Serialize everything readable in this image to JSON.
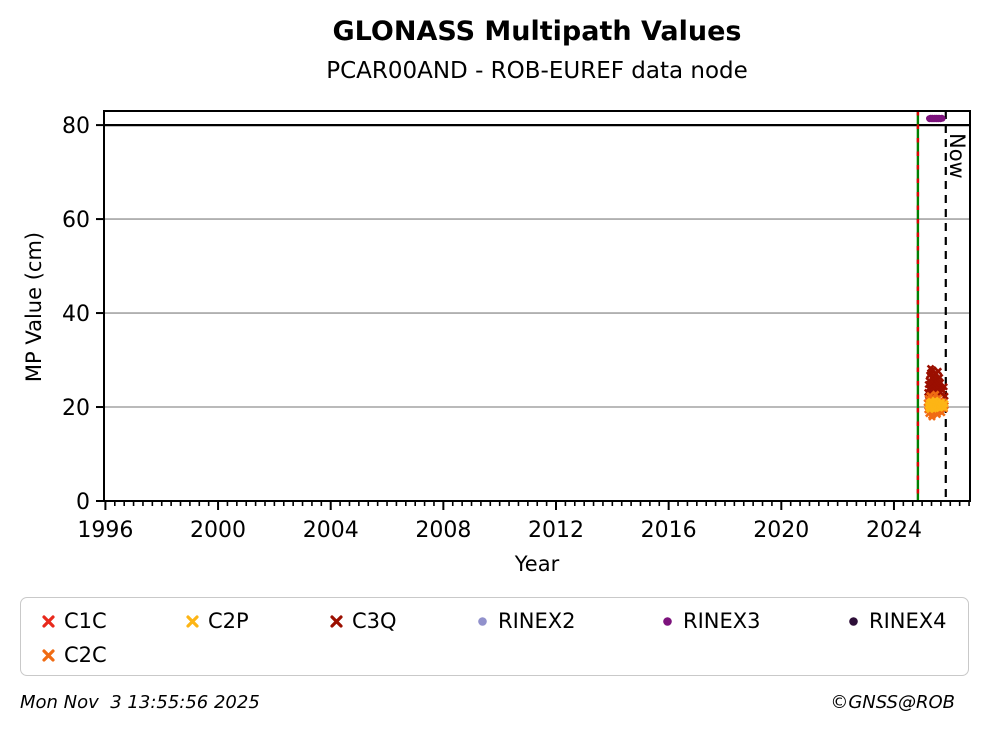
{
  "header": {
    "title": "GLONASS Multipath Values",
    "subtitle": "PCAR00AND - ROB-EUREF data node"
  },
  "axes": {
    "xlabel": "Year",
    "ylabel": "MP Value (cm)"
  },
  "footer": {
    "timestamp": "Mon Nov  3 13:55:56 2025",
    "copyright": "©GNSS@ROB"
  },
  "colors": {
    "grid": "#b0b0b0",
    "threshold_line": "#000000",
    "vline_green": "#008000",
    "vline_red_dash": "#dd0000",
    "now_line": "#000000"
  },
  "legend": {
    "items": [
      {
        "label": "C1C",
        "marker": "x",
        "color": "#e8291c"
      },
      {
        "label": "C2P",
        "marker": "x",
        "color": "#fdb515"
      },
      {
        "label": "C3Q",
        "marker": "x",
        "color": "#9b0f00"
      },
      {
        "label": "RINEX2",
        "marker": "circle",
        "color": "#9191cc"
      },
      {
        "label": "RINEX3",
        "marker": "circle",
        "color": "#7c127c"
      },
      {
        "label": "RINEX4",
        "marker": "circle",
        "color": "#2d0e38"
      },
      {
        "label": "C2C",
        "marker": "x",
        "color": "#f06b13"
      }
    ]
  },
  "chart_data": {
    "type": "scatter",
    "title": "GLONASS Multipath Values",
    "subtitle": "PCAR00AND - ROB-EUREF data node",
    "xlabel": "Year",
    "ylabel": "MP Value (cm)",
    "xlim": [
      1995.95,
      2026.7
    ],
    "ylim": [
      0,
      83
    ],
    "xticks": [
      1996,
      2000,
      2004,
      2008,
      2012,
      2016,
      2020,
      2024
    ],
    "yticks": [
      0,
      20,
      40,
      60,
      80
    ],
    "minor_x_start": 1996,
    "minor_x_step": 0.33333,
    "grid_y": [
      20,
      40,
      60
    ],
    "hline_y": 80,
    "vlines": [
      {
        "id": "data-start-line",
        "x": 2024.85,
        "type": "green-red-dashed"
      },
      {
        "id": "now-line",
        "x": 2025.84,
        "type": "black-dashed",
        "label": "Now"
      }
    ],
    "draw_order": [
      "C1C",
      "C3Q",
      "C2C",
      "C2P",
      "RINEX2",
      "RINEX4",
      "RINEX3"
    ],
    "series": [
      {
        "name": "C1C",
        "color": "#e8291c",
        "marker": "x",
        "points": [
          [
            2025.21,
            20.1
          ],
          [
            2025.27,
            19.3
          ],
          [
            2025.33,
            20.8
          ],
          [
            2025.39,
            19.1
          ],
          [
            2025.45,
            20.9
          ],
          [
            2025.51,
            19.4
          ],
          [
            2025.57,
            20.6
          ],
          [
            2025.63,
            19.2
          ],
          [
            2025.7,
            20.3
          ],
          [
            2025.77,
            19.8
          ]
        ]
      },
      {
        "name": "C2P",
        "color": "#fdb515",
        "marker": "x",
        "points": [
          [
            2025.22,
            20.3
          ],
          [
            2025.24,
            19.8
          ],
          [
            2025.26,
            20.9
          ],
          [
            2025.28,
            19.5
          ],
          [
            2025.3,
            20.6
          ],
          [
            2025.32,
            21.2
          ],
          [
            2025.34,
            19.9
          ],
          [
            2025.36,
            20.2
          ],
          [
            2025.38,
            21.0
          ],
          [
            2025.4,
            19.6
          ],
          [
            2025.42,
            20.7
          ],
          [
            2025.44,
            20.0
          ],
          [
            2025.46,
            21.4
          ],
          [
            2025.48,
            19.7
          ],
          [
            2025.5,
            20.5
          ],
          [
            2025.52,
            20.1
          ],
          [
            2025.54,
            21.1
          ],
          [
            2025.56,
            19.9
          ],
          [
            2025.58,
            20.4
          ],
          [
            2025.6,
            20.8
          ],
          [
            2025.62,
            19.8
          ],
          [
            2025.64,
            20.6
          ],
          [
            2025.66,
            20.2
          ],
          [
            2025.68,
            21.0
          ],
          [
            2025.71,
            20.0
          ],
          [
            2025.74,
            20.4
          ],
          [
            2025.78,
            19.9
          ],
          [
            2025.81,
            20.7
          ]
        ]
      },
      {
        "name": "C3Q",
        "color": "#9b0f00",
        "marker": "x",
        "points": [
          [
            2025.2,
            23.1
          ],
          [
            2025.22,
            24.8
          ],
          [
            2025.23,
            22.4
          ],
          [
            2025.25,
            25.6
          ],
          [
            2025.26,
            23.9
          ],
          [
            2025.27,
            26.8
          ],
          [
            2025.28,
            22.9
          ],
          [
            2025.3,
            24.2
          ],
          [
            2025.31,
            27.3
          ],
          [
            2025.32,
            23.5
          ],
          [
            2025.33,
            25.1
          ],
          [
            2025.35,
            26.2
          ],
          [
            2025.36,
            22.1
          ],
          [
            2025.37,
            24.6
          ],
          [
            2025.38,
            27.9
          ],
          [
            2025.4,
            23.3
          ],
          [
            2025.41,
            25.9
          ],
          [
            2025.42,
            24.0
          ],
          [
            2025.44,
            26.5
          ],
          [
            2025.45,
            22.6
          ],
          [
            2025.46,
            24.9
          ],
          [
            2025.48,
            27.1
          ],
          [
            2025.49,
            23.7
          ],
          [
            2025.5,
            25.4
          ],
          [
            2025.52,
            24.4
          ],
          [
            2025.53,
            26.0
          ],
          [
            2025.55,
            22.8
          ],
          [
            2025.56,
            25.0
          ],
          [
            2025.58,
            23.4
          ],
          [
            2025.6,
            24.7
          ],
          [
            2025.62,
            26.3
          ],
          [
            2025.63,
            23.0
          ],
          [
            2025.65,
            25.2
          ],
          [
            2025.68,
            24.1
          ],
          [
            2025.72,
            23.6
          ],
          [
            2025.78,
            24.3
          ],
          [
            2025.81,
            22.3
          ],
          [
            2025.3,
            28.2
          ],
          [
            2025.43,
            21.7
          ],
          [
            2025.57,
            27.6
          ]
        ]
      },
      {
        "name": "RINEX2",
        "color": "#9191cc",
        "marker": "circle",
        "points": []
      },
      {
        "name": "RINEX3",
        "color": "#7c127c",
        "marker": "circle",
        "points": [
          [
            2025.25,
            81.4
          ],
          [
            2025.27,
            81.3
          ],
          [
            2025.3,
            81.5
          ],
          [
            2025.32,
            81.4
          ],
          [
            2025.35,
            81.3
          ],
          [
            2025.37,
            81.5
          ],
          [
            2025.4,
            81.4
          ],
          [
            2025.42,
            81.3
          ],
          [
            2025.45,
            81.5
          ],
          [
            2025.47,
            81.4
          ],
          [
            2025.5,
            81.3
          ],
          [
            2025.52,
            81.5
          ],
          [
            2025.55,
            81.4
          ],
          [
            2025.57,
            81.3
          ],
          [
            2025.6,
            81.5
          ],
          [
            2025.62,
            81.4
          ],
          [
            2025.65,
            81.3
          ],
          [
            2025.67,
            81.4
          ],
          [
            2025.7,
            81.5
          ],
          [
            2025.72,
            81.4
          ]
        ]
      },
      {
        "name": "RINEX4",
        "color": "#2d0e38",
        "marker": "circle",
        "points": []
      },
      {
        "name": "C2C",
        "color": "#f06b13",
        "marker": "x",
        "points": [
          [
            2025.18,
            20.9
          ],
          [
            2025.2,
            19.4
          ],
          [
            2025.22,
            21.8
          ],
          [
            2025.24,
            18.6
          ],
          [
            2025.26,
            20.2
          ],
          [
            2025.28,
            22.4
          ],
          [
            2025.3,
            19.0
          ],
          [
            2025.32,
            21.2
          ],
          [
            2025.34,
            18.2
          ],
          [
            2025.36,
            20.6
          ],
          [
            2025.38,
            22.0
          ],
          [
            2025.4,
            19.7
          ],
          [
            2025.42,
            21.5
          ],
          [
            2025.44,
            18.9
          ],
          [
            2025.46,
            20.4
          ],
          [
            2025.48,
            22.7
          ],
          [
            2025.5,
            19.2
          ],
          [
            2025.52,
            21.0
          ],
          [
            2025.54,
            18.4
          ],
          [
            2025.56,
            20.8
          ],
          [
            2025.58,
            21.9
          ],
          [
            2025.6,
            19.5
          ],
          [
            2025.62,
            20.1
          ],
          [
            2025.64,
            21.3
          ],
          [
            2025.66,
            19.9
          ],
          [
            2025.68,
            20.5
          ],
          [
            2025.7,
            18.8
          ],
          [
            2025.73,
            20.0
          ],
          [
            2025.76,
            21.1
          ],
          [
            2025.79,
            19.6
          ],
          [
            2025.82,
            20.3
          ],
          [
            2025.35,
            17.9
          ]
        ]
      }
    ]
  }
}
